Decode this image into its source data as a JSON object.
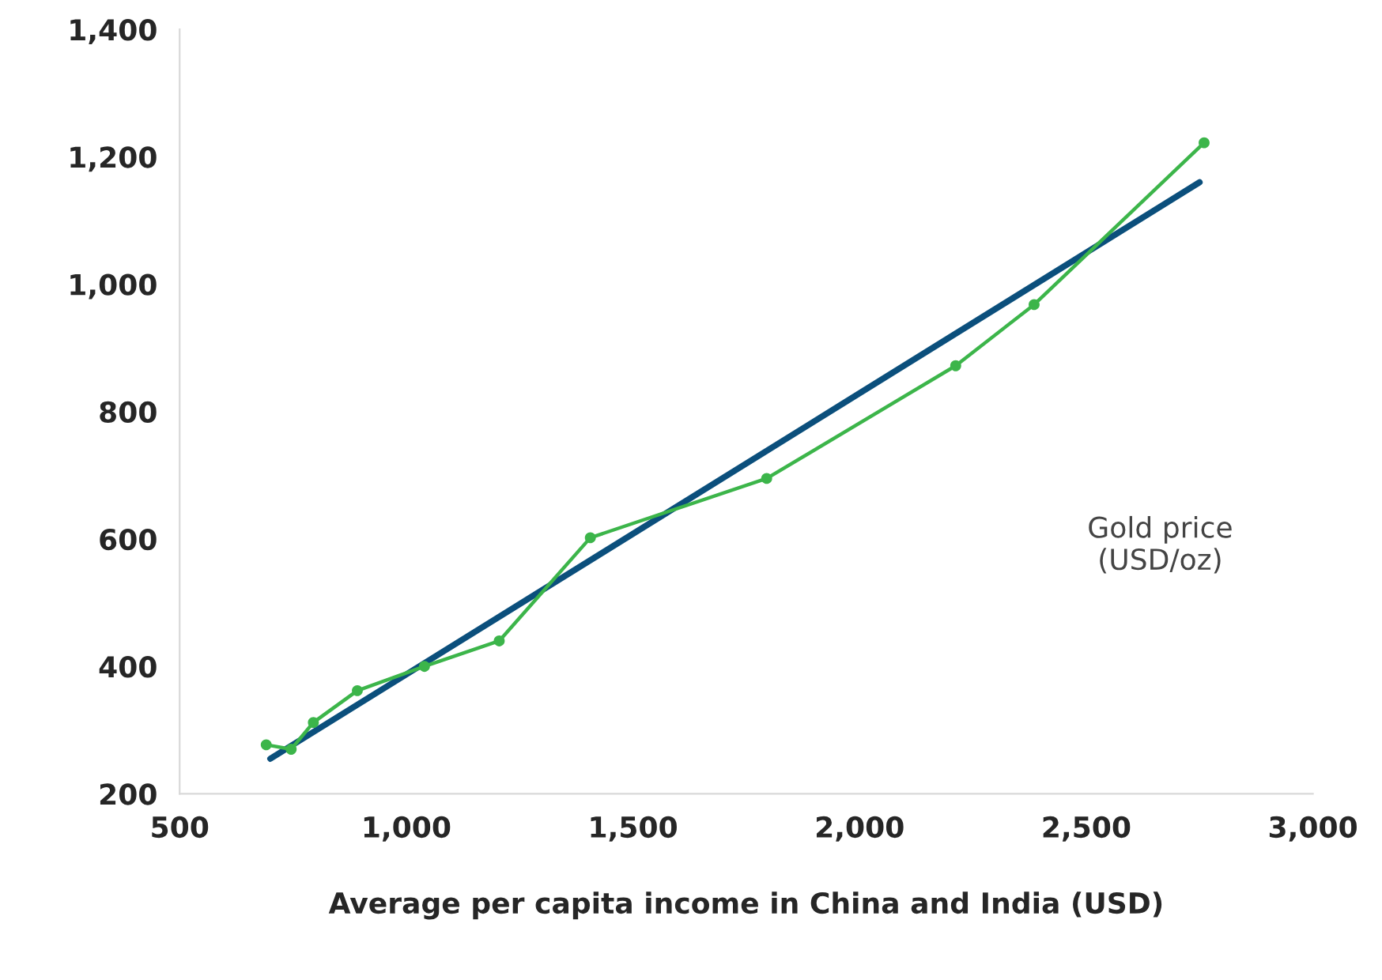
{
  "chart_data": {
    "type": "line",
    "xlabel": "Average per capita income in China and India (USD)",
    "xlim": [
      500,
      3000
    ],
    "xticks": [
      {
        "value": 500,
        "label": "500"
      },
      {
        "value": 1000,
        "label": "1,000"
      },
      {
        "value": 1500,
        "label": "1,500"
      },
      {
        "value": 2000,
        "label": "2,000"
      },
      {
        "value": 2500,
        "label": "2,500"
      },
      {
        "value": 3000,
        "label": "3,000"
      }
    ],
    "ylim": [
      200,
      1400
    ],
    "yticks": [
      {
        "value": 200,
        "label": "200"
      },
      {
        "value": 400,
        "label": "400"
      },
      {
        "value": 600,
        "label": "600"
      },
      {
        "value": 800,
        "label": "800"
      },
      {
        "value": 1000,
        "label": "1,000"
      },
      {
        "value": 1200,
        "label": "1,200"
      },
      {
        "value": 1400,
        "label": "1,400"
      }
    ],
    "grid": false,
    "legend": false,
    "series": [
      {
        "name": "Gold price\n(USD/oz)",
        "color": "#3cb54a",
        "marker": "circle",
        "x": [
          691,
          746,
          795,
          892,
          1040,
          1205,
          1406,
          1795,
          2212,
          2385,
          2760
        ],
        "values": [
          277,
          270,
          312,
          362,
          400,
          440,
          602,
          695,
          872,
          968,
          1222
        ]
      },
      {
        "type": "line",
        "color": "#0b4f7c",
        "marker": "none",
        "x": [
          700,
          2750
        ],
        "values": [
          255,
          1160
        ]
      }
    ]
  }
}
